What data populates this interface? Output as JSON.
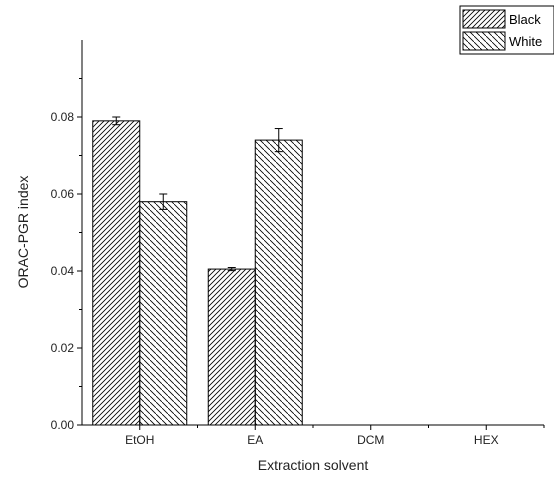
{
  "chart_data": {
    "type": "bar",
    "title": "",
    "xlabel": "Extraction solvent",
    "ylabel": "ORAC-PGR index",
    "categories": [
      "EtOH",
      "EA",
      "DCM",
      "HEX"
    ],
    "series": [
      {
        "name": "Black",
        "values": [
          0.079,
          0.0405,
          0,
          0
        ],
        "errors": [
          0.001,
          0.0004,
          0,
          0
        ],
        "pattern": "forward-hatch"
      },
      {
        "name": "White",
        "values": [
          0.058,
          0.074,
          0,
          0
        ],
        "errors": [
          0.002,
          0.003,
          0,
          0
        ],
        "pattern": "back-hatch"
      }
    ],
    "ylim": [
      0,
      0.1
    ],
    "yticks": [
      "0.00",
      "0.02",
      "0.04",
      "0.06",
      "0.08"
    ],
    "legend": "top-right",
    "grid": false,
    "colors": {
      "bar_fill": "#ffffff",
      "stroke": "#000000"
    }
  }
}
